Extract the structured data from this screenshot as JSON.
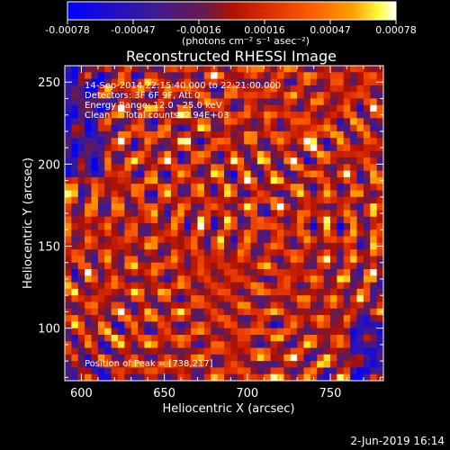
{
  "chart_data": {
    "type": "heatmap",
    "title": "Reconstructed RHESSI Image",
    "xlabel": "Heliocentric X (arcsec)",
    "ylabel": "Heliocentric Y (arcsec)",
    "xlim": [
      590,
      782
    ],
    "ylim": [
      68,
      260
    ],
    "xticks": [
      600,
      650,
      700,
      750
    ],
    "yticks": [
      100,
      150,
      200,
      250
    ],
    "colorbar": {
      "range": [
        -0.00078,
        0.00078
      ],
      "ticks": [
        "-0.00078",
        "-0.00047",
        "-0.00016",
        "0.00016",
        "0.00047",
        "0.00078"
      ],
      "label": "(photons cm⁻² s⁻¹ asec⁻²)",
      "colors": [
        "#0000ff",
        "#3a1a9a",
        "#6a1a4a",
        "#b01000",
        "#e03000",
        "#ff6000",
        "#ffa000",
        "#ffff40",
        "#ffffff"
      ]
    },
    "annotations": [
      "14-Sep-2014 22:15:40.000 to 22:21:00.000",
      "Detectors: 3F 6F 9F, Att 0",
      "Energy Range: 12.0 - 25.0 keV",
      "Clean     Total counts: 2.94E+03"
    ],
    "peak_label": "Position of Peak = [738,217]",
    "peak": [
      738,
      217
    ]
  },
  "footer": {
    "date": "2-Jun-2019 16:14"
  }
}
